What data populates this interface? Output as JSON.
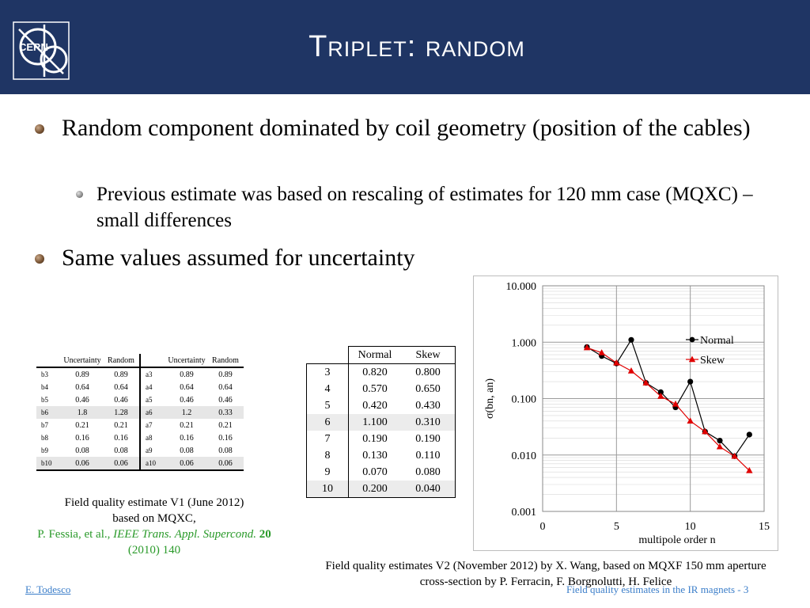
{
  "header": {
    "title": "Triplet: random",
    "logo_text": "CERN"
  },
  "bullets": {
    "main1": "Random component dominated by coil geometry (position of the cables)",
    "sub1": "Previous estimate was based on rescaling of estimates for 120 mm case (MQXC) – small differences",
    "main2": "Same values assumed for uncertainty"
  },
  "table_v1": {
    "headers": [
      "Uncertainty",
      "Random",
      "Uncertainty",
      "Random"
    ],
    "rows": [
      [
        "b3",
        "0.89",
        "0.89",
        "a3",
        "0.89",
        "0.89"
      ],
      [
        "b4",
        "0.64",
        "0.64",
        "a4",
        "0.64",
        "0.64"
      ],
      [
        "b5",
        "0.46",
        "0.46",
        "a5",
        "0.46",
        "0.46"
      ],
      [
        "b6",
        "1.8",
        "1.28",
        "a6",
        "1.2",
        "0.33"
      ],
      [
        "b7",
        "0.21",
        "0.21",
        "a7",
        "0.21",
        "0.21"
      ],
      [
        "b8",
        "0.16",
        "0.16",
        "a8",
        "0.16",
        "0.16"
      ],
      [
        "b9",
        "0.08",
        "0.08",
        "a9",
        "0.08",
        "0.08"
      ],
      [
        "b10",
        "0.06",
        "0.06",
        "a10",
        "0.06",
        "0.06"
      ]
    ]
  },
  "table_v2": {
    "headers": [
      "Normal",
      "Skew"
    ],
    "rows": [
      [
        "3",
        "0.820",
        "0.800"
      ],
      [
        "4",
        "0.570",
        "0.650"
      ],
      [
        "5",
        "0.420",
        "0.430"
      ],
      [
        "6",
        "1.100",
        "0.310"
      ],
      [
        "7",
        "0.190",
        "0.190"
      ],
      [
        "8",
        "0.130",
        "0.110"
      ],
      [
        "9",
        "0.070",
        "0.080"
      ],
      [
        "10",
        "0.200",
        "0.040"
      ]
    ]
  },
  "caption_v1": {
    "line1": "Field quality estimate V1 (June 2012)",
    "line2": "based on MQXC,",
    "authors": "P. Fessia, et al., ",
    "journal": "IEEE Trans. Appl. Supercond.",
    "volume": "20",
    "pages": " (2010) 140"
  },
  "caption_v2": {
    "line1": "Field quality estimates V2 (November 2012) by X. Wang, based on MQXF 150 mm aperture",
    "line2": "cross-section by P. Ferracin, F. Borgnolutti, H. Felice"
  },
  "footer": {
    "author": "E. Todesco",
    "right": "Field quality estimates in the IR magnets - 3"
  },
  "chart_data": {
    "type": "scatter",
    "xlabel": "multipole order n",
    "ylabel": "σ(bn, an)",
    "xlim": [
      0,
      15
    ],
    "ylim": [
      0.001,
      10
    ],
    "yscale": "log",
    "xticks": [
      "0",
      "5",
      "10",
      "15"
    ],
    "yticks": [
      "0.001",
      "0.010",
      "0.100",
      "1.000",
      "10.000"
    ],
    "grid": true,
    "legend": "right",
    "series": [
      {
        "name": "Normal",
        "color": "#000000",
        "marker": "circle",
        "x": [
          3,
          4,
          5,
          6,
          7,
          8,
          9,
          10,
          11,
          12,
          13,
          14
        ],
        "values": [
          0.82,
          0.57,
          0.42,
          1.1,
          0.19,
          0.13,
          0.07,
          0.2,
          0.026,
          0.018,
          0.0095,
          0.023
        ]
      },
      {
        "name": "Skew",
        "color": "#e00000",
        "marker": "triangle",
        "x": [
          3,
          4,
          5,
          6,
          7,
          8,
          9,
          10,
          11,
          12,
          13,
          14
        ],
        "values": [
          0.8,
          0.65,
          0.43,
          0.31,
          0.19,
          0.11,
          0.08,
          0.04,
          0.026,
          0.014,
          0.0095,
          0.0053
        ]
      }
    ]
  }
}
